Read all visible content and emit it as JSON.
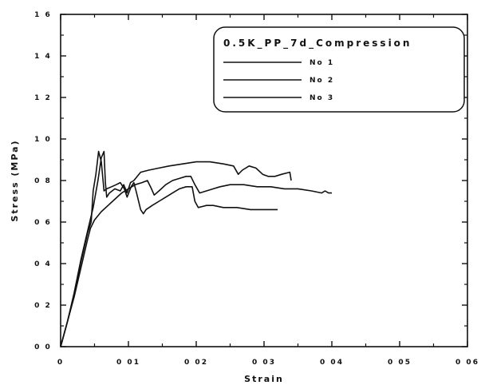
{
  "chart_data": {
    "type": "line",
    "title": "",
    "xlabel": "Strain",
    "ylabel": "Stress (MPa)",
    "xlim": [
      0,
      0.06
    ],
    "ylim": [
      0,
      1.6
    ],
    "x_ticks": [
      0,
      0.01,
      0.02,
      0.03,
      0.04,
      0.05,
      0.06
    ],
    "x_tick_labels": [
      "0",
      "0 01",
      "0 02",
      "0 03",
      "0 04",
      "0 05",
      "0 06"
    ],
    "y_ticks": [
      0,
      0.2,
      0.4,
      0.6,
      0.8,
      1.0,
      1.2,
      1.4,
      1.6
    ],
    "y_tick_labels": [
      "0 0",
      "0 2",
      "0 4",
      "0 6",
      "0 8",
      "1 0",
      "1 2",
      "1 4",
      "1 6"
    ],
    "grid": false,
    "legend": {
      "title": "0.5K_PP_7d_Compression",
      "position": "top-right"
    },
    "series": [
      {
        "name": "No 1",
        "color": "#111111",
        "points": [
          [
            0,
            0
          ],
          [
            0.001,
            0.12
          ],
          [
            0.002,
            0.26
          ],
          [
            0.003,
            0.42
          ],
          [
            0.004,
            0.56
          ],
          [
            0.0048,
            0.67
          ],
          [
            0.0055,
            0.8
          ],
          [
            0.006,
            0.91
          ],
          [
            0.0064,
            0.94
          ],
          [
            0.0066,
            0.79
          ],
          [
            0.0068,
            0.72
          ],
          [
            0.0072,
            0.74
          ],
          [
            0.008,
            0.76
          ],
          [
            0.0088,
            0.75
          ],
          [
            0.0093,
            0.78
          ],
          [
            0.0098,
            0.74
          ],
          [
            0.0103,
            0.79
          ],
          [
            0.0108,
            0.8
          ],
          [
            0.0113,
            0.82
          ],
          [
            0.0118,
            0.84
          ],
          [
            0.013,
            0.85
          ],
          [
            0.0145,
            0.86
          ],
          [
            0.016,
            0.87
          ],
          [
            0.018,
            0.88
          ],
          [
            0.02,
            0.89
          ],
          [
            0.022,
            0.89
          ],
          [
            0.024,
            0.88
          ],
          [
            0.0255,
            0.87
          ],
          [
            0.0262,
            0.83
          ],
          [
            0.0268,
            0.85
          ],
          [
            0.0278,
            0.87
          ],
          [
            0.0288,
            0.86
          ],
          [
            0.0298,
            0.83
          ],
          [
            0.0306,
            0.82
          ],
          [
            0.0316,
            0.82
          ],
          [
            0.0326,
            0.83
          ],
          [
            0.0338,
            0.84
          ],
          [
            0.0339,
            0.82
          ],
          [
            0.034,
            0.8
          ]
        ]
      },
      {
        "name": "No 2",
        "color": "#111111",
        "points": [
          [
            0,
            0
          ],
          [
            0.001,
            0.12
          ],
          [
            0.002,
            0.25
          ],
          [
            0.003,
            0.41
          ],
          [
            0.004,
            0.55
          ],
          [
            0.0045,
            0.6
          ],
          [
            0.0048,
            0.75
          ],
          [
            0.0052,
            0.83
          ],
          [
            0.0056,
            0.94
          ],
          [
            0.006,
            0.89
          ],
          [
            0.0064,
            0.75
          ],
          [
            0.0068,
            0.76
          ],
          [
            0.0075,
            0.77
          ],
          [
            0.0082,
            0.78
          ],
          [
            0.0088,
            0.79
          ],
          [
            0.0094,
            0.76
          ],
          [
            0.0098,
            0.72
          ],
          [
            0.0104,
            0.77
          ],
          [
            0.0108,
            0.79
          ],
          [
            0.0112,
            0.74
          ],
          [
            0.0118,
            0.66
          ],
          [
            0.0122,
            0.64
          ],
          [
            0.0126,
            0.66
          ],
          [
            0.0135,
            0.68
          ],
          [
            0.0145,
            0.7
          ],
          [
            0.0155,
            0.72
          ],
          [
            0.0165,
            0.74
          ],
          [
            0.0175,
            0.76
          ],
          [
            0.0185,
            0.77
          ],
          [
            0.0194,
            0.77
          ],
          [
            0.0198,
            0.7
          ],
          [
            0.0203,
            0.67
          ],
          [
            0.0215,
            0.68
          ],
          [
            0.0225,
            0.68
          ],
          [
            0.024,
            0.67
          ],
          [
            0.026,
            0.67
          ],
          [
            0.028,
            0.66
          ],
          [
            0.03,
            0.66
          ],
          [
            0.032,
            0.66
          ]
        ]
      },
      {
        "name": "No 3",
        "color": "#111111",
        "points": [
          [
            0,
            0
          ],
          [
            0.001,
            0.12
          ],
          [
            0.002,
            0.24
          ],
          [
            0.003,
            0.38
          ],
          [
            0.004,
            0.52
          ],
          [
            0.0044,
            0.57
          ],
          [
            0.005,
            0.61
          ],
          [
            0.006,
            0.65
          ],
          [
            0.007,
            0.68
          ],
          [
            0.008,
            0.71
          ],
          [
            0.009,
            0.74
          ],
          [
            0.01,
            0.76
          ],
          [
            0.011,
            0.78
          ],
          [
            0.012,
            0.79
          ],
          [
            0.0128,
            0.8
          ],
          [
            0.0134,
            0.76
          ],
          [
            0.0138,
            0.73
          ],
          [
            0.0145,
            0.75
          ],
          [
            0.0155,
            0.78
          ],
          [
            0.0165,
            0.8
          ],
          [
            0.0175,
            0.81
          ],
          [
            0.0185,
            0.82
          ],
          [
            0.0192,
            0.82
          ],
          [
            0.0198,
            0.78
          ],
          [
            0.0205,
            0.74
          ],
          [
            0.0215,
            0.75
          ],
          [
            0.0225,
            0.76
          ],
          [
            0.0235,
            0.77
          ],
          [
            0.025,
            0.78
          ],
          [
            0.027,
            0.78
          ],
          [
            0.029,
            0.77
          ],
          [
            0.031,
            0.77
          ],
          [
            0.033,
            0.76
          ],
          [
            0.035,
            0.76
          ],
          [
            0.037,
            0.75
          ],
          [
            0.0385,
            0.74
          ],
          [
            0.039,
            0.75
          ],
          [
            0.0395,
            0.74
          ],
          [
            0.04,
            0.74
          ]
        ]
      }
    ]
  }
}
